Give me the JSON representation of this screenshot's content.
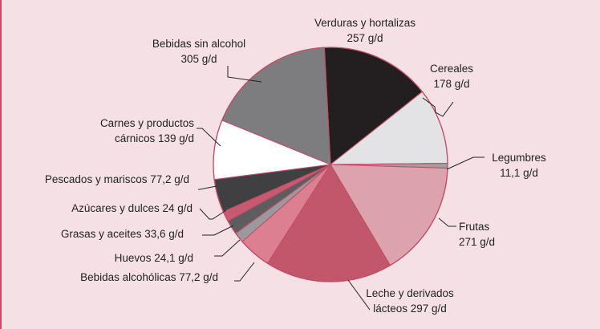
{
  "chart_data": {
    "type": "pie",
    "unit": "g/d",
    "slices": [
      {
        "label_lines": [
          "Verduras y hortalizas",
          "257 g/d"
        ],
        "name": "Verduras y hortalizas",
        "value": 257,
        "color": "#231f20"
      },
      {
        "label_lines": [
          "Cereales",
          "178 g/d"
        ],
        "name": "Cereales",
        "value": 178,
        "color": "#e3e3e5"
      },
      {
        "label_lines": [
          "Legumbres",
          "11,1 g/d"
        ],
        "name": "Legumbres",
        "value": 11.1,
        "color": "#a0a0a4"
      },
      {
        "label_lines": [
          "Frutas",
          "271 g/d"
        ],
        "name": "Frutas",
        "value": 271,
        "color": "#dca3ae"
      },
      {
        "label_lines": [
          "Leche y derivados",
          "lácteos 297 g/d"
        ],
        "name": "Leche y derivados lácteos",
        "value": 297,
        "color": "#c2566b"
      },
      {
        "label_lines": [
          "Bebidas alcohólicas 77,2 g/d"
        ],
        "name": "Bebidas alcohólicas",
        "value": 77.2,
        "color": "#dc7f90"
      },
      {
        "label_lines": [
          "Huevos 24,1 g/d"
        ],
        "name": "Huevos",
        "value": 24.1,
        "color": "#9a9a9e"
      },
      {
        "label_lines": [
          "Grasas y aceites 33,6 g/d"
        ],
        "name": "Grasas y aceites",
        "value": 33.6,
        "color": "#5d5d60"
      },
      {
        "label_lines": [
          "Azúcares y dulces 24 g/d"
        ],
        "name": "Azúcares y dulces",
        "value": 24,
        "color": "#c75a70"
      },
      {
        "label_lines": [
          "Pescados y mariscos 77,2 g/d"
        ],
        "name": "Pescados y mariscos",
        "value": 77.2,
        "color": "#404042"
      },
      {
        "label_lines": [
          "Carnes y productos",
          "cárnicos 139 g/d"
        ],
        "name": "Carnes y productos cárnicos",
        "value": 139,
        "color": "#ffffff"
      },
      {
        "label_lines": [
          "Bebidas sin alcohol",
          "305 g/d"
        ],
        "name": "Bebidas sin alcohol",
        "value": 305,
        "color": "#7d7d80"
      }
    ],
    "slice_border_color": "#c24e66"
  }
}
